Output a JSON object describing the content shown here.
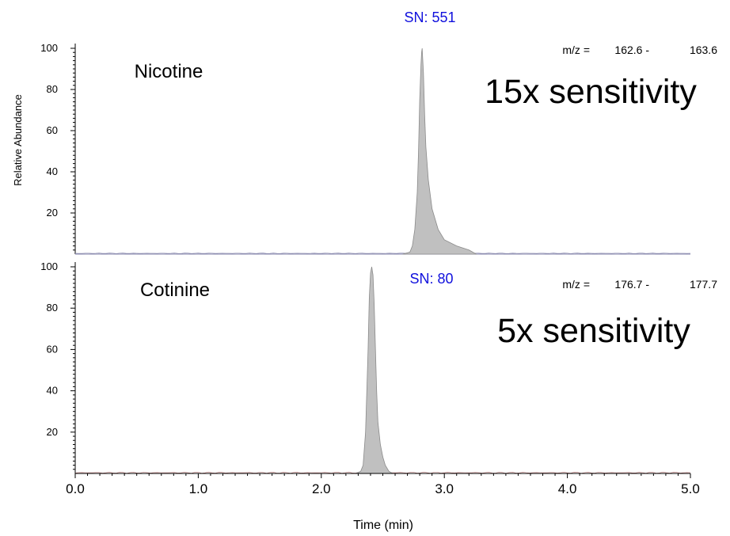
{
  "chart_data": {
    "type": "line",
    "xlabel": "Time (min)",
    "ylabel": "Relative Abundance",
    "xlim": [
      0.0,
      5.0
    ],
    "xticks": [
      "0.0",
      "1.0",
      "2.0",
      "3.0",
      "4.0",
      "5.0"
    ],
    "panels": [
      {
        "name": "Nicotine",
        "sn_label": "SN: 551",
        "mz_label": "m/z =",
        "mz_low": "162.6 -",
        "mz_high": "163.6",
        "sensitivity": "15x sensitivity",
        "ylim": [
          0,
          100
        ],
        "yticks": [
          "20",
          "40",
          "60",
          "80",
          "100"
        ],
        "peak_apex_time": 2.82,
        "peak_height": 100,
        "x": [
          2.66,
          2.72,
          2.74,
          2.76,
          2.78,
          2.79,
          2.8,
          2.81,
          2.815,
          2.82,
          2.83,
          2.84,
          2.85,
          2.87,
          2.9,
          2.95,
          3.0,
          3.1,
          3.2,
          3.26
        ],
        "y": [
          0,
          1,
          4,
          12,
          30,
          50,
          75,
          92,
          98,
          100,
          88,
          68,
          52,
          36,
          22,
          12,
          7,
          4,
          2,
          0
        ]
      },
      {
        "name": "Cotinine",
        "sn_label": "SN: 80",
        "mz_label": "m/z =",
        "mz_low": "176.7 -",
        "mz_high": "177.7",
        "sensitivity": "5x sensitivity",
        "ylim": [
          0,
          100
        ],
        "yticks": [
          "20",
          "40",
          "60",
          "80",
          "100"
        ],
        "peak_apex_time": 2.41,
        "peak_height": 100,
        "x": [
          2.28,
          2.32,
          2.34,
          2.36,
          2.37,
          2.38,
          2.39,
          2.4,
          2.41,
          2.42,
          2.43,
          2.44,
          2.45,
          2.46,
          2.48,
          2.5,
          2.52,
          2.55,
          2.58
        ],
        "y": [
          0,
          1,
          4,
          20,
          40,
          60,
          85,
          97,
          100,
          96,
          82,
          60,
          40,
          25,
          14,
          8,
          4,
          1,
          0
        ]
      }
    ]
  },
  "colors": {
    "sn_text": "#1010dd",
    "peak_fill": "#c0c0c0",
    "text": "#000000"
  }
}
